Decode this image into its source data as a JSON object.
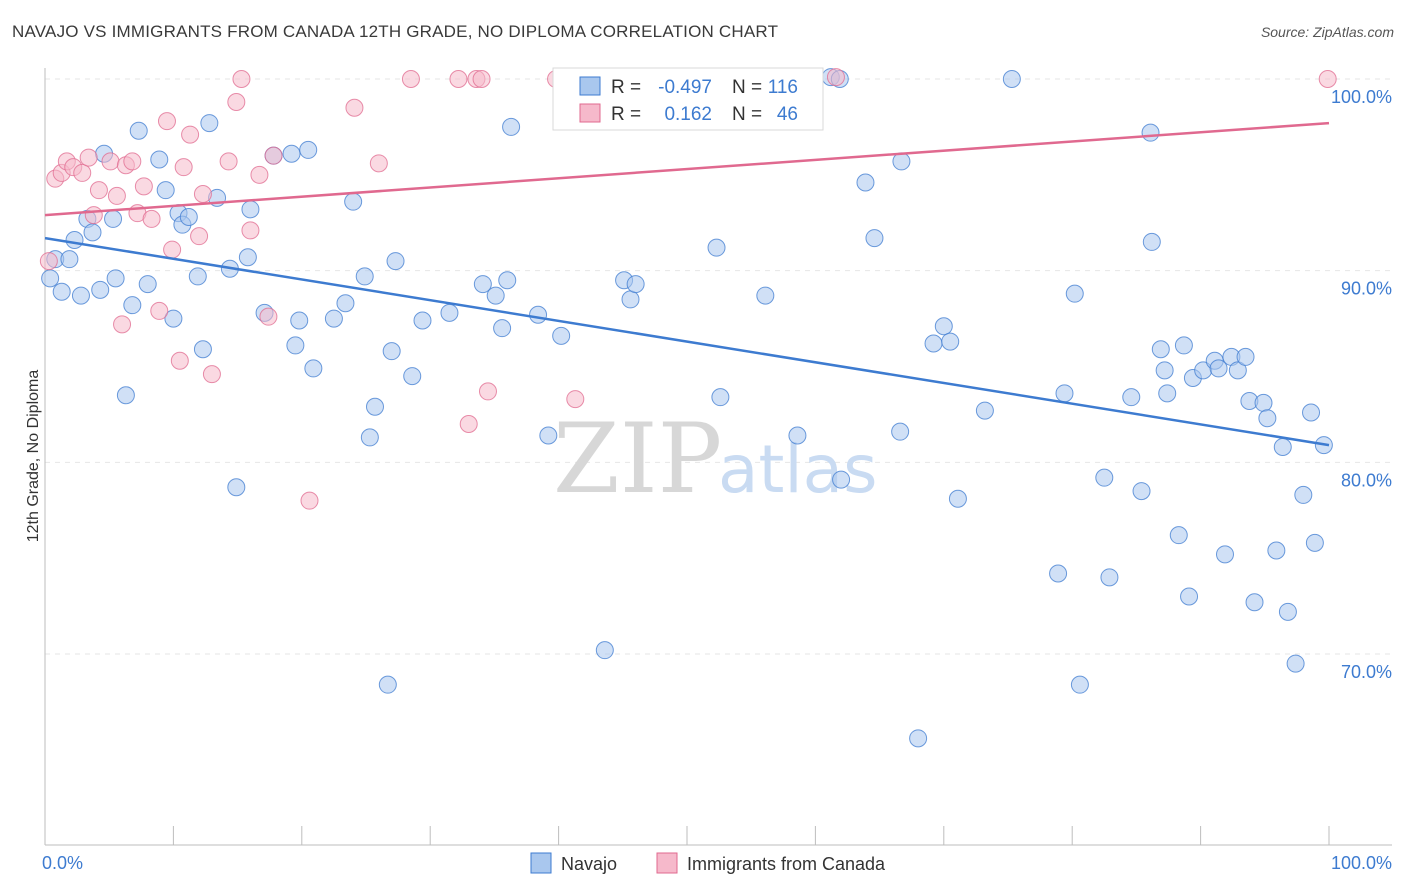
{
  "header": {
    "title": "NAVAJO VS IMMIGRANTS FROM CANADA 12TH GRADE, NO DIPLOMA CORRELATION CHART",
    "source": "Source: ZipAtlas.com"
  },
  "watermark": {
    "zip": "ZIP",
    "atlas": "atlas"
  },
  "stats_box": {
    "rows": [
      {
        "r_label": "R =",
        "r_value": "-0.497",
        "n_label": "N =",
        "n_value": "116",
        "color": "#a9c7ee"
      },
      {
        "r_label": "R =",
        "r_value": "0.162",
        "n_label": "N =",
        "n_value": "46",
        "color": "#f6b9cb"
      }
    ]
  },
  "legend": {
    "items": [
      {
        "label": "Navajo",
        "color": "#a9c7ee"
      },
      {
        "label": "Immigrants from Canada",
        "color": "#f6b9cb"
      }
    ]
  },
  "chart_data": {
    "type": "scatter",
    "title": "NAVAJO VS IMMIGRANTS FROM CANADA 12TH GRADE, NO DIPLOMA CORRELATION CHART",
    "xlabel": "",
    "ylabel": "12th Grade, No Diploma",
    "xlim": [
      0,
      100
    ],
    "ylim": [
      60,
      101.5
    ],
    "x_tick_labels": [
      "0.0%",
      "100.0%"
    ],
    "y_ticks": [
      70,
      80,
      90,
      100
    ],
    "y_tick_labels": [
      "70.0%",
      "80.0%",
      "90.0%",
      "100.0%"
    ],
    "grid": true,
    "legend_position": "bottom-center",
    "series": [
      {
        "name": "Navajo",
        "color": "#3d7bd0",
        "fill": "#a9c7ee",
        "trend": {
          "x": [
            0,
            100
          ],
          "y": [
            91.7,
            80.9
          ]
        },
        "points": [
          [
            0.4,
            89.6
          ],
          [
            0.8,
            90.6
          ],
          [
            1.3,
            88.9
          ],
          [
            1.9,
            90.6
          ],
          [
            2.3,
            91.6
          ],
          [
            2.8,
            88.7
          ],
          [
            3.3,
            92.7
          ],
          [
            3.7,
            92.0
          ],
          [
            4.3,
            89.0
          ],
          [
            4.6,
            96.1
          ],
          [
            5.3,
            92.7
          ],
          [
            5.5,
            89.6
          ],
          [
            6.3,
            83.5
          ],
          [
            6.8,
            88.2
          ],
          [
            7.3,
            97.3
          ],
          [
            8.0,
            89.3
          ],
          [
            8.9,
            95.8
          ],
          [
            9.4,
            94.2
          ],
          [
            10.0,
            87.5
          ],
          [
            10.4,
            93.0
          ],
          [
            10.7,
            92.4
          ],
          [
            11.2,
            92.8
          ],
          [
            11.9,
            89.7
          ],
          [
            12.3,
            85.9
          ],
          [
            12.8,
            97.7
          ],
          [
            13.4,
            93.8
          ],
          [
            14.4,
            90.1
          ],
          [
            14.9,
            78.7
          ],
          [
            15.8,
            90.7
          ],
          [
            16.0,
            93.2
          ],
          [
            17.1,
            87.8
          ],
          [
            17.8,
            96.0
          ],
          [
            19.2,
            96.1
          ],
          [
            19.5,
            86.1
          ],
          [
            19.8,
            87.4
          ],
          [
            20.5,
            96.3
          ],
          [
            20.9,
            84.9
          ],
          [
            22.5,
            87.5
          ],
          [
            23.4,
            88.3
          ],
          [
            24.0,
            93.6
          ],
          [
            24.9,
            89.7
          ],
          [
            25.3,
            81.3
          ],
          [
            25.7,
            82.9
          ],
          [
            26.7,
            68.4
          ],
          [
            27.0,
            85.8
          ],
          [
            27.3,
            90.5
          ],
          [
            28.6,
            84.5
          ],
          [
            29.4,
            87.4
          ],
          [
            31.5,
            87.8
          ],
          [
            34.1,
            89.3
          ],
          [
            35.1,
            88.7
          ],
          [
            35.6,
            87.0
          ],
          [
            36.0,
            89.5
          ],
          [
            36.3,
            97.5
          ],
          [
            38.4,
            87.7
          ],
          [
            39.2,
            81.4
          ],
          [
            40.2,
            86.6
          ],
          [
            43.6,
            70.2
          ],
          [
            45.1,
            89.5
          ],
          [
            45.6,
            88.5
          ],
          [
            46.0,
            89.3
          ],
          [
            51.9,
            100.0
          ],
          [
            52.3,
            91.2
          ],
          [
            52.6,
            83.4
          ],
          [
            56.1,
            88.7
          ],
          [
            58.6,
            81.4
          ],
          [
            61.2,
            100.1
          ],
          [
            61.9,
            100.0
          ],
          [
            62.0,
            79.1
          ],
          [
            63.9,
            94.6
          ],
          [
            64.6,
            91.7
          ],
          [
            66.6,
            81.6
          ],
          [
            66.7,
            95.7
          ],
          [
            68.0,
            65.6
          ],
          [
            69.2,
            86.2
          ],
          [
            70.0,
            87.1
          ],
          [
            70.5,
            86.3
          ],
          [
            71.1,
            78.1
          ],
          [
            73.2,
            82.7
          ],
          [
            75.3,
            100.0
          ],
          [
            78.9,
            74.2
          ],
          [
            79.4,
            83.6
          ],
          [
            80.2,
            88.8
          ],
          [
            80.6,
            68.4
          ],
          [
            82.5,
            79.2
          ],
          [
            82.9,
            74.0
          ],
          [
            84.6,
            83.4
          ],
          [
            85.4,
            78.5
          ],
          [
            86.1,
            97.2
          ],
          [
            86.2,
            91.5
          ],
          [
            86.9,
            85.9
          ],
          [
            87.2,
            84.8
          ],
          [
            87.4,
            83.6
          ],
          [
            88.3,
            76.2
          ],
          [
            88.7,
            86.1
          ],
          [
            89.1,
            73.0
          ],
          [
            89.4,
            84.4
          ],
          [
            90.2,
            84.8
          ],
          [
            91.1,
            85.3
          ],
          [
            91.4,
            84.9
          ],
          [
            91.9,
            75.2
          ],
          [
            92.4,
            85.5
          ],
          [
            92.9,
            84.8
          ],
          [
            93.5,
            85.5
          ],
          [
            93.8,
            83.2
          ],
          [
            94.2,
            72.7
          ],
          [
            94.9,
            83.1
          ],
          [
            95.2,
            82.3
          ],
          [
            95.9,
            75.4
          ],
          [
            96.4,
            80.8
          ],
          [
            96.8,
            72.2
          ],
          [
            97.4,
            69.5
          ],
          [
            98.0,
            78.3
          ],
          [
            98.6,
            82.6
          ],
          [
            98.9,
            75.8
          ],
          [
            99.6,
            80.9
          ]
        ]
      },
      {
        "name": "Immigrants from Canada",
        "color": "#e0698f",
        "fill": "#f6b9cb",
        "trend": {
          "x": [
            0,
            100
          ],
          "y": [
            92.9,
            97.7
          ]
        },
        "points": [
          [
            0.3,
            90.5
          ],
          [
            0.8,
            94.8
          ],
          [
            1.3,
            95.1
          ],
          [
            1.7,
            95.7
          ],
          [
            2.2,
            95.4
          ],
          [
            2.9,
            95.1
          ],
          [
            3.4,
            95.9
          ],
          [
            3.8,
            92.9
          ],
          [
            4.2,
            94.2
          ],
          [
            5.1,
            95.7
          ],
          [
            5.6,
            93.9
          ],
          [
            6.0,
            87.2
          ],
          [
            6.3,
            95.5
          ],
          [
            6.8,
            95.7
          ],
          [
            7.2,
            93.0
          ],
          [
            7.7,
            94.4
          ],
          [
            8.3,
            92.7
          ],
          [
            8.9,
            87.9
          ],
          [
            9.5,
            97.8
          ],
          [
            9.9,
            91.1
          ],
          [
            10.5,
            85.3
          ],
          [
            10.8,
            95.4
          ],
          [
            11.3,
            97.1
          ],
          [
            12.0,
            91.8
          ],
          [
            12.3,
            94.0
          ],
          [
            13.0,
            84.6
          ],
          [
            14.3,
            95.7
          ],
          [
            14.9,
            98.8
          ],
          [
            15.3,
            100.0
          ],
          [
            16.0,
            92.1
          ],
          [
            16.7,
            95.0
          ],
          [
            17.4,
            87.6
          ],
          [
            17.8,
            96.0
          ],
          [
            20.6,
            78.0
          ],
          [
            24.1,
            98.5
          ],
          [
            26.0,
            95.6
          ],
          [
            28.5,
            100.0
          ],
          [
            32.2,
            100.0
          ],
          [
            33.0,
            82.0
          ],
          [
            33.6,
            100.0
          ],
          [
            34.0,
            100.0
          ],
          [
            34.5,
            83.7
          ],
          [
            39.8,
            100.0
          ],
          [
            41.3,
            83.3
          ],
          [
            61.6,
            100.1
          ],
          [
            99.9,
            100.0
          ]
        ]
      }
    ]
  }
}
